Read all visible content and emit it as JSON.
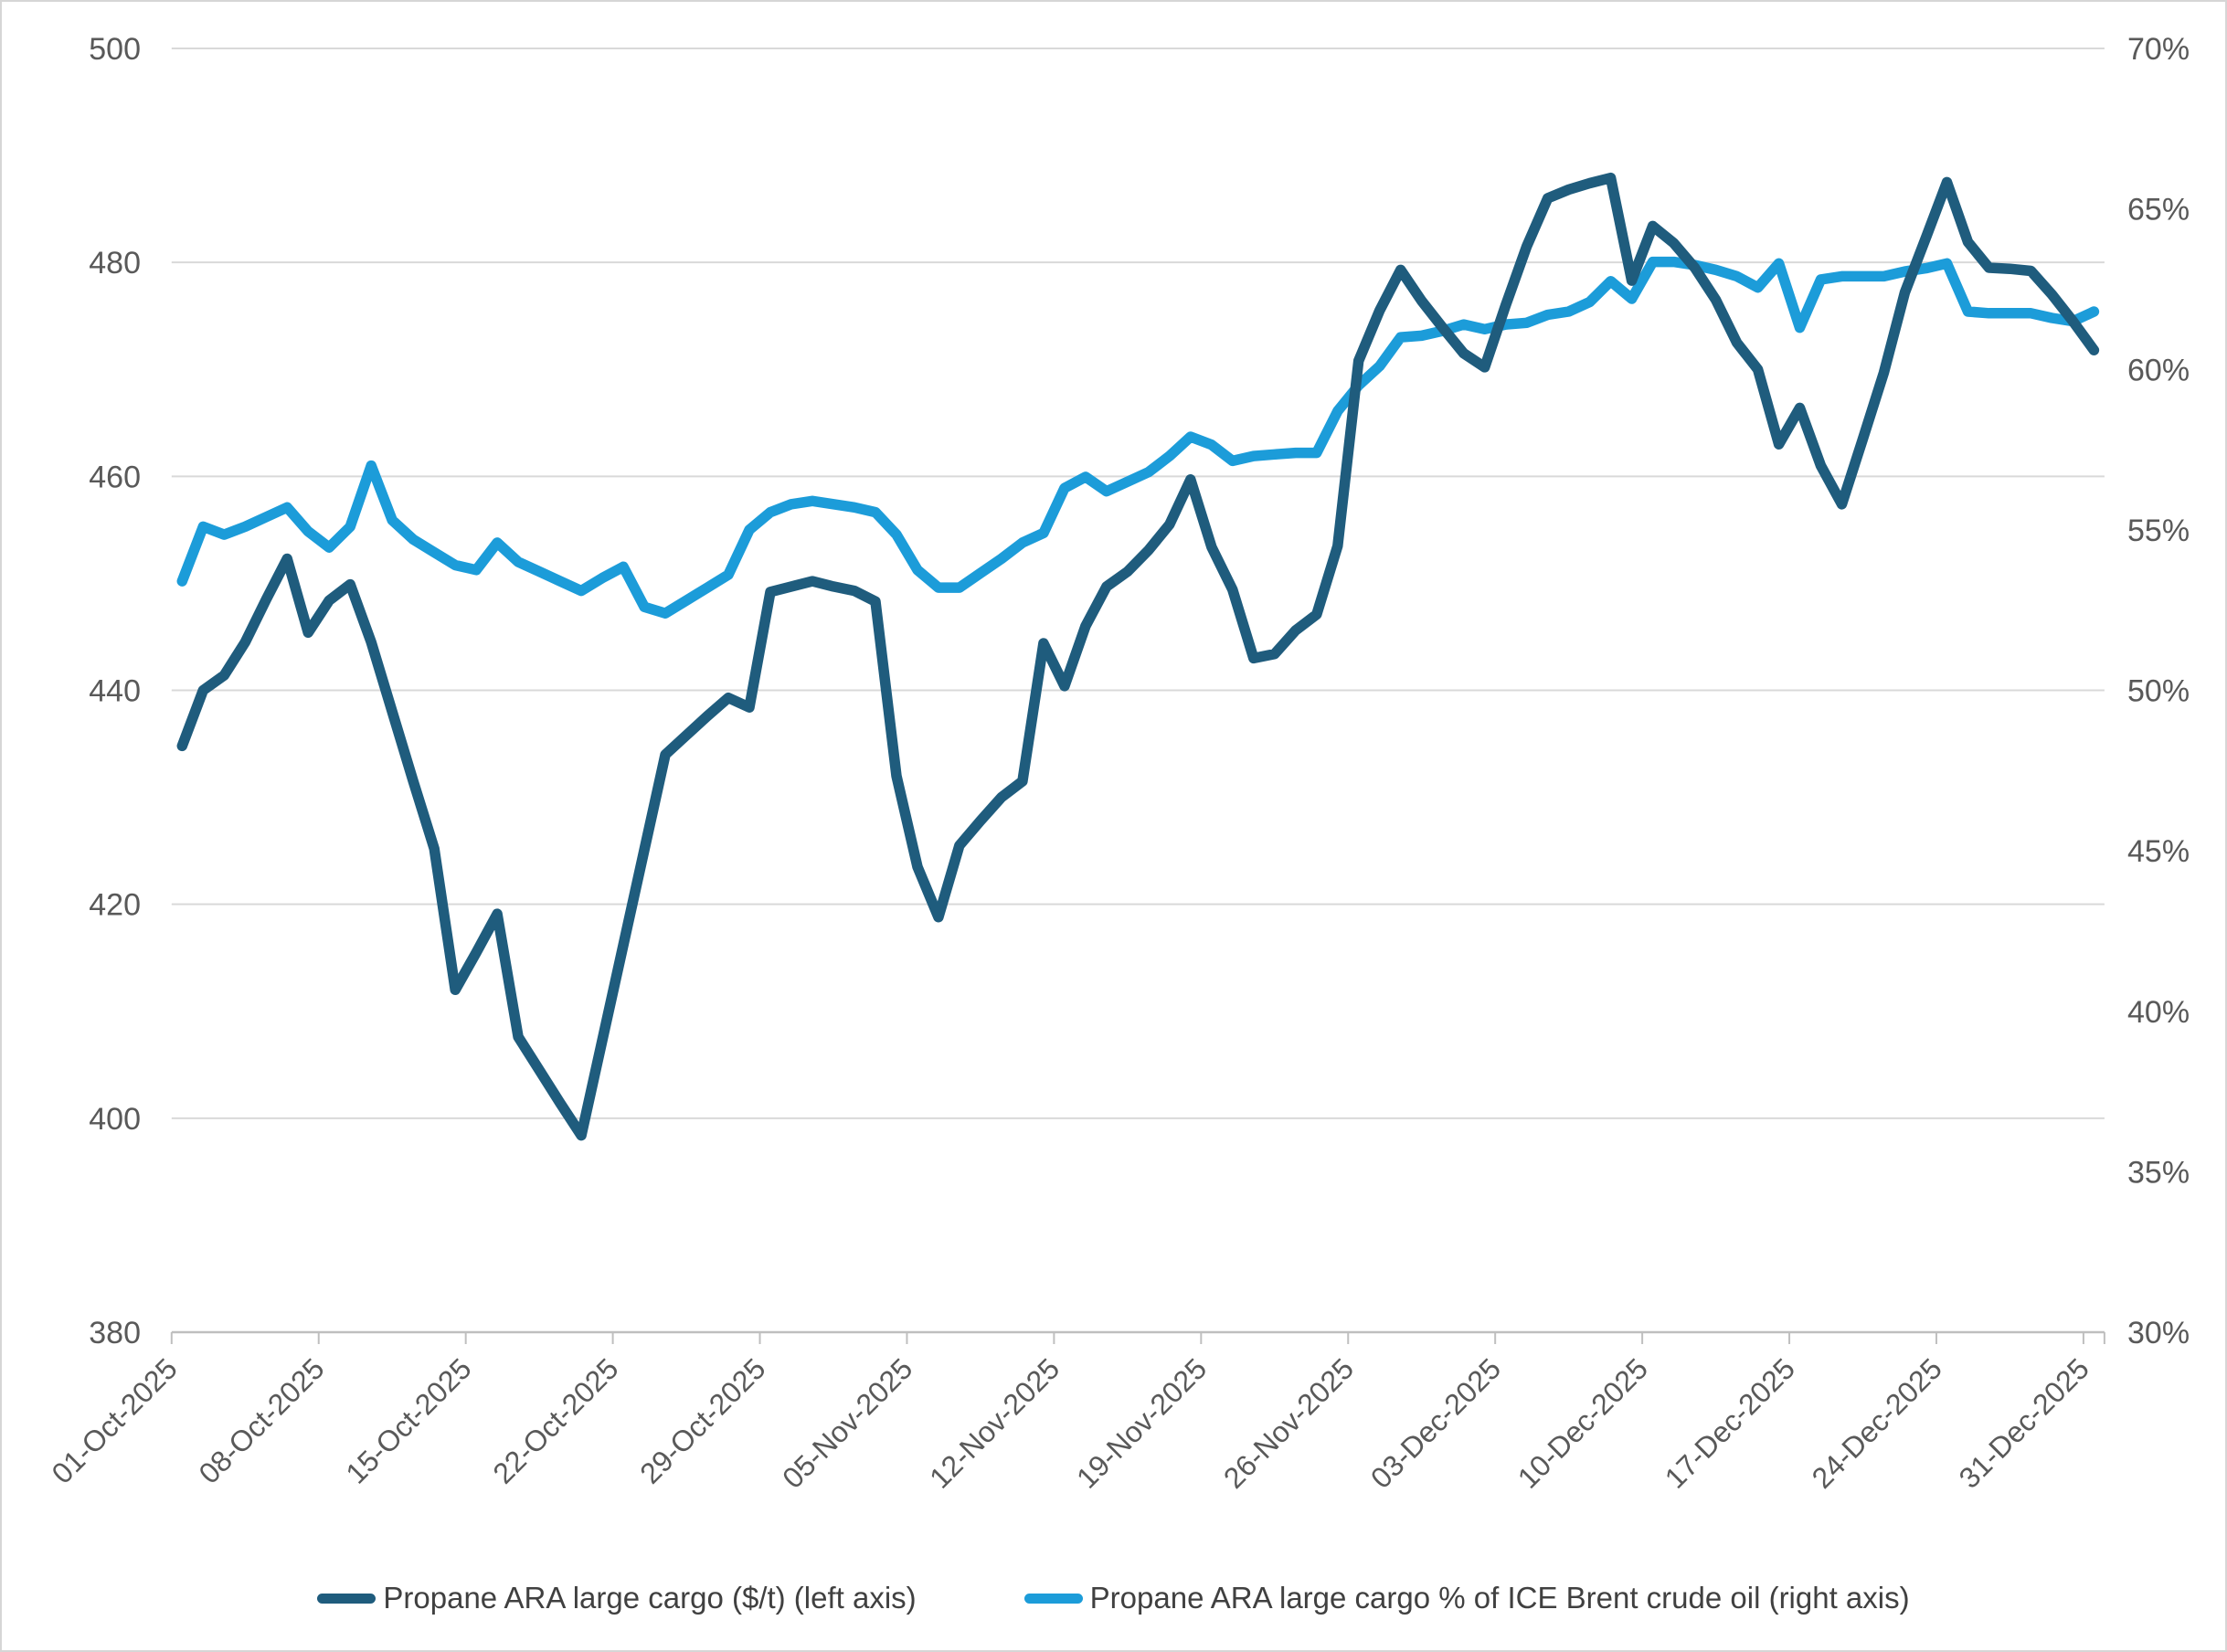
{
  "chart_data": {
    "type": "line",
    "title": "",
    "x_tick_labels": [
      "01-Oct-2025",
      "08-Oct-2025",
      "15-Oct-2025",
      "22-Oct-2025",
      "29-Oct-2025",
      "05-Nov-2025",
      "12-Nov-2025",
      "19-Nov-2025",
      "26-Nov-2025",
      "03-Dec-2025",
      "10-Dec-2025",
      "17-Dec-2025",
      "24-Dec-2025",
      "31-Dec-2025"
    ],
    "x_tick_every": 7,
    "left_axis": {
      "min": 380,
      "max": 500,
      "step": 20,
      "labels": [
        "500",
        "480",
        "460",
        "440",
        "420",
        "400",
        "380"
      ]
    },
    "right_axis": {
      "min": 30,
      "max": 70,
      "step": 5,
      "labels": [
        "70%",
        "65%",
        "60%",
        "55%",
        "50%",
        "45%",
        "40%",
        "35%",
        "30%"
      ]
    },
    "grid": true,
    "legend_position": "bottom",
    "dates": [
      "01-Oct-2025",
      "02-Oct-2025",
      "03-Oct-2025",
      "04-Oct-2025",
      "05-Oct-2025",
      "06-Oct-2025",
      "07-Oct-2025",
      "08-Oct-2025",
      "09-Oct-2025",
      "10-Oct-2025",
      "11-Oct-2025",
      "12-Oct-2025",
      "13-Oct-2025",
      "14-Oct-2025",
      "15-Oct-2025",
      "16-Oct-2025",
      "17-Oct-2025",
      "18-Oct-2025",
      "19-Oct-2025",
      "20-Oct-2025",
      "21-Oct-2025",
      "22-Oct-2025",
      "23-Oct-2025",
      "24-Oct-2025",
      "25-Oct-2025",
      "26-Oct-2025",
      "27-Oct-2025",
      "28-Oct-2025",
      "29-Oct-2025",
      "30-Oct-2025",
      "31-Oct-2025",
      "01-Nov-2025",
      "02-Nov-2025",
      "03-Nov-2025",
      "04-Nov-2025",
      "05-Nov-2025",
      "06-Nov-2025",
      "07-Nov-2025",
      "08-Nov-2025",
      "09-Nov-2025",
      "10-Nov-2025",
      "11-Nov-2025",
      "12-Nov-2025",
      "13-Nov-2025",
      "14-Nov-2025",
      "15-Nov-2025",
      "16-Nov-2025",
      "17-Nov-2025",
      "18-Nov-2025",
      "19-Nov-2025",
      "20-Nov-2025",
      "21-Nov-2025",
      "22-Nov-2025",
      "23-Nov-2025",
      "24-Nov-2025",
      "25-Nov-2025",
      "26-Nov-2025",
      "27-Nov-2025",
      "28-Nov-2025",
      "29-Nov-2025",
      "30-Nov-2025",
      "01-Dec-2025",
      "02-Dec-2025",
      "03-Dec-2025",
      "04-Dec-2025",
      "05-Dec-2025",
      "06-Dec-2025",
      "07-Dec-2025",
      "08-Dec-2025",
      "09-Dec-2025",
      "10-Dec-2025",
      "11-Dec-2025",
      "12-Dec-2025",
      "13-Dec-2025",
      "14-Dec-2025",
      "15-Dec-2025",
      "16-Dec-2025",
      "17-Dec-2025",
      "18-Dec-2025",
      "19-Dec-2025",
      "20-Dec-2025",
      "21-Dec-2025",
      "22-Dec-2025",
      "23-Dec-2025",
      "24-Dec-2025",
      "25-Dec-2025",
      "26-Dec-2025",
      "27-Dec-2025",
      "28-Dec-2025",
      "29-Dec-2025",
      "30-Dec-2025",
      "31-Dec-2025"
    ],
    "series": [
      {
        "name": "Propane ARA large cargo ($/t) (left axis)",
        "axis": "left",
        "color": "#1F5C7D",
        "values": [
          434.8,
          440.0,
          441.4,
          444.5,
          448.5,
          452.3,
          445.4,
          448.4,
          449.9,
          444.5,
          438.0,
          431.5,
          425.2,
          412.0,
          415.5,
          419.1,
          407.6,
          404.5,
          401.4,
          398.4,
          407.3,
          416.2,
          425.1,
          434.0,
          435.8,
          437.6,
          439.3,
          438.4,
          449.2,
          449.7,
          450.2,
          449.7,
          449.3,
          448.3,
          432.0,
          423.5,
          418.8,
          425.5,
          427.8,
          430.0,
          431.5,
          444.4,
          440.4,
          446.0,
          449.7,
          451.1,
          453.1,
          455.5,
          459.7,
          453.4,
          449.4,
          443.0,
          443.4,
          445.6,
          447.1,
          453.5,
          470.8,
          475.5,
          479.3,
          476.4,
          473.9,
          471.5,
          470.2,
          476.0,
          481.5,
          486.0,
          486.8,
          487.4,
          487.9,
          478.3,
          483.4,
          481.8,
          479.5,
          476.5,
          472.5,
          470.0,
          463.0,
          466.4,
          461.0,
          457.4,
          463.5,
          469.7,
          477.2,
          482.3,
          487.5,
          481.9,
          479.5,
          479.4,
          479.2,
          477.0,
          474.5,
          471.8
        ]
      },
      {
        "name": "Propane ARA large cargo % of ICE Brent crude oil (right axis)",
        "axis": "right",
        "color": "#1C9CD9",
        "values": [
          53.4,
          55.1,
          54.85,
          55.1,
          55.4,
          55.7,
          54.95,
          54.45,
          55.1,
          57.0,
          55.3,
          54.7,
          54.3,
          53.9,
          53.75,
          54.6,
          54.0,
          53.7,
          53.4,
          53.1,
          53.5,
          53.85,
          52.6,
          52.4,
          52.8,
          53.2,
          53.6,
          55.0,
          55.55,
          55.8,
          55.9,
          55.8,
          55.7,
          55.55,
          54.85,
          53.75,
          53.2,
          53.2,
          53.65,
          54.1,
          54.6,
          54.9,
          56.3,
          56.65,
          56.2,
          56.5,
          56.8,
          57.3,
          57.9,
          57.65,
          57.15,
          57.3,
          57.35,
          57.4,
          57.4,
          58.7,
          59.5,
          60.1,
          61.0,
          61.05,
          61.2,
          61.4,
          61.25,
          61.4,
          61.45,
          61.7,
          61.8,
          62.1,
          62.75,
          62.2,
          63.35,
          63.35,
          63.25,
          63.1,
          62.9,
          62.55,
          63.3,
          61.3,
          62.8,
          62.9,
          62.9,
          62.9,
          63.05,
          63.15,
          63.3,
          61.8,
          61.75,
          61.75,
          61.75,
          61.6,
          61.5,
          61.8
        ]
      }
    ],
    "colors": {
      "gridline": "#D9D9D9",
      "axis_line": "#BFBFBF",
      "tick_label": "#595959",
      "legend_text": "#404040",
      "background": "#FFFFFF"
    }
  },
  "legend": {
    "items": [
      {
        "label": "Propane ARA large cargo ($/t) (left axis)",
        "color": "#1F5C7D"
      },
      {
        "label": "Propane ARA large cargo % of ICE Brent crude oil (right axis)",
        "color": "#1C9CD9"
      }
    ]
  }
}
